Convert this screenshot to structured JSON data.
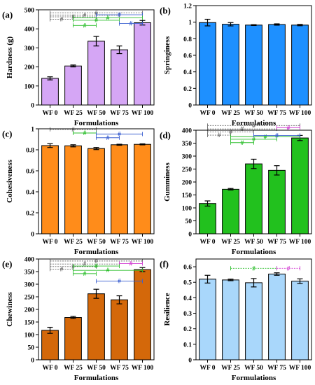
{
  "chart_data": [
    {
      "type": "bar",
      "panel": "(a)",
      "categories": [
        "WF 0",
        "WF 25",
        "WF 50",
        "WF 75",
        "WF 100"
      ],
      "values": [
        140,
        205,
        335,
        290,
        432
      ],
      "errors": [
        8,
        5,
        25,
        20,
        12
      ],
      "ylim": [
        0,
        500
      ],
      "yticks": [
        0,
        100,
        200,
        300,
        400,
        500
      ],
      "xlabel": "Formulations",
      "ylabel": "Hardness (g)",
      "color": "#d5a6f5",
      "sig_rows": [
        {
          "y": 484,
          "x1": 0,
          "x2": 4,
          "label": "#",
          "color": "#6a6a6a",
          "dashed": true
        },
        {
          "y": 472,
          "x1": 0,
          "x2": 3,
          "label": "#",
          "color": "#6a6a6a",
          "dashed": true
        },
        {
          "y": 463,
          "x1": 0,
          "x2": 2,
          "label": "#",
          "color": "#6a6a6a",
          "dashed": true
        },
        {
          "y": 450,
          "x1": 0,
          "x2": 1,
          "label": "#",
          "color": "#6a6a6a",
          "dashed": true
        },
        {
          "y": 474,
          "x1": 2,
          "x2": 4,
          "label": "#",
          "color": "#3a5fd0",
          "dashed": false
        },
        {
          "y": 458,
          "x1": 1,
          "x2": 4,
          "label": "#",
          "color": "#2fbf2f",
          "dashed": false
        },
        {
          "y": 445,
          "x1": 1,
          "x2": 3,
          "label": "#",
          "color": "#2fbf2f",
          "dashed": false
        },
        {
          "y": 418,
          "x1": 1,
          "x2": 2,
          "label": "#",
          "color": "#2fbf2f",
          "dashed": false
        },
        {
          "y": 428,
          "x1": 3,
          "x2": 4,
          "label": "#",
          "color": "#3a5fd0",
          "dashed": false
        }
      ]
    },
    {
      "type": "bar",
      "panel": "(b)",
      "categories": [
        "WF 0",
        "WF 25",
        "WF 50",
        "WF 75",
        "WF 100"
      ],
      "values": [
        0.995,
        0.975,
        0.965,
        0.972,
        0.965
      ],
      "errors": [
        0.04,
        0.02,
        0.005,
        0.008,
        0.008
      ],
      "ylim": [
        0,
        1.2
      ],
      "yticks": [
        0,
        0.2,
        0.4,
        0.6,
        0.8,
        1,
        1.2
      ],
      "xlabel": "Formulations",
      "ylabel": "Springiness",
      "color": "#1e90ff",
      "sig_rows": []
    },
    {
      "type": "bar",
      "panel": "(c)",
      "categories": [
        "WF 0",
        "WF 25",
        "WF 50",
        "WF 75",
        "WF 100"
      ],
      "values": [
        0.84,
        0.838,
        0.812,
        0.848,
        0.852
      ],
      "errors": [
        0.018,
        0.01,
        0.01,
        0.005,
        0.005
      ],
      "ylim": [
        0,
        1
      ],
      "yticks": [
        0,
        0.2,
        0.4,
        0.6,
        0.8,
        1
      ],
      "xlabel": "Formulations",
      "ylabel": "Cohesiveness",
      "color": "#ff8c1a",
      "sig_rows": [
        {
          "y": 0.995,
          "x1": 0,
          "x2": 2,
          "label": "#",
          "color": "#6a6a6a",
          "dashed": true
        },
        {
          "y": 0.96,
          "x1": 1,
          "x2": 2,
          "label": "#",
          "color": "#2fbf2f",
          "dashed": false
        },
        {
          "y": 0.95,
          "x1": 2,
          "x2": 4,
          "label": "#",
          "color": "#3a5fd0",
          "dashed": false
        },
        {
          "y": 0.915,
          "x1": 2,
          "x2": 3,
          "label": "#",
          "color": "#3a5fd0",
          "dashed": false
        }
      ]
    },
    {
      "type": "bar",
      "panel": "(d)",
      "categories": [
        "WF 0",
        "WF 25",
        "WF 50",
        "WF 75",
        "WF 100"
      ],
      "values": [
        117,
        172,
        270,
        245,
        370
      ],
      "errors": [
        10,
        3,
        18,
        18,
        10
      ],
      "ylim": [
        0,
        400
      ],
      "yticks": [
        0,
        50,
        100,
        150,
        200,
        250,
        300,
        350,
        400
      ],
      "xlabel": "Formulations",
      "ylabel": "Gumminess",
      "color": "#22c11e",
      "sig_rows": [
        {
          "y": 418,
          "x1": 0,
          "x2": 4,
          "label": "#",
          "color": "#6a6a6a",
          "dashed": true
        },
        {
          "y": 405,
          "x1": 0,
          "x2": 3,
          "label": "#",
          "color": "#6a6a6a",
          "dashed": true
        },
        {
          "y": 393,
          "x1": 0,
          "x2": 2,
          "label": "#",
          "color": "#6a6a6a",
          "dashed": true
        },
        {
          "y": 381,
          "x1": 0,
          "x2": 1,
          "label": "#",
          "color": "#6a6a6a",
          "dashed": true
        },
        {
          "y": 410,
          "x1": 3,
          "x2": 4,
          "label": "#",
          "color": "#d23fd2",
          "dashed": false
        },
        {
          "y": 375,
          "x1": 1,
          "x2": 4,
          "label": "#",
          "color": "#2fbf2f",
          "dashed": false
        },
        {
          "y": 365,
          "x1": 1,
          "x2": 3,
          "label": "#",
          "color": "#2fbf2f",
          "dashed": false
        },
        {
          "y": 352,
          "x1": 1,
          "x2": 2,
          "label": "#",
          "color": "#2fbf2f",
          "dashed": false
        },
        {
          "y": 380,
          "x1": 2,
          "x2": 4,
          "label": "#",
          "color": "#3a5fd0",
          "dashed": false
        }
      ]
    },
    {
      "type": "bar",
      "panel": "(e)",
      "categories": [
        "WF 0",
        "WF 25",
        "WF 50",
        "WF 75",
        "WF 100"
      ],
      "values": [
        117,
        168,
        262,
        238,
        358
      ],
      "errors": [
        12,
        4,
        18,
        16,
        8
      ],
      "ylim": [
        0,
        400
      ],
      "yticks": [
        0,
        50,
        100,
        150,
        200,
        250,
        300,
        350,
        400
      ],
      "xlabel": "Formulations",
      "ylabel": "Chewiness",
      "color": "#d4680a",
      "sig_rows": [
        {
          "y": 392,
          "x1": 0,
          "x2": 4,
          "label": "#",
          "color": "#6a6a6a",
          "dashed": true
        },
        {
          "y": 380,
          "x1": 0,
          "x2": 3,
          "label": "#",
          "color": "#6a6a6a",
          "dashed": true
        },
        {
          "y": 370,
          "x1": 0,
          "x2": 2,
          "label": "#",
          "color": "#6a6a6a",
          "dashed": true
        },
        {
          "y": 360,
          "x1": 0,
          "x2": 1,
          "label": "#",
          "color": "#6a6a6a",
          "dashed": true
        },
        {
          "y": 382,
          "x1": 3,
          "x2": 4,
          "label": "#",
          "color": "#d23fd2",
          "dashed": false
        },
        {
          "y": 372,
          "x1": 1,
          "x2": 3,
          "label": "#",
          "color": "#2fbf2f",
          "dashed": false
        },
        {
          "y": 355,
          "x1": 1,
          "x2": 4,
          "label": "#",
          "color": "#2fbf2f",
          "dashed": false
        },
        {
          "y": 342,
          "x1": 1,
          "x2": 2,
          "label": "#",
          "color": "#2fbf2f",
          "dashed": false
        },
        {
          "y": 312,
          "x1": 2,
          "x2": 4,
          "label": "#",
          "color": "#3a5fd0",
          "dashed": false
        }
      ]
    },
    {
      "type": "bar",
      "panel": "(f)",
      "categories": [
        "WF 0",
        "WF 25",
        "WF 50",
        "WF 75",
        "WF 100"
      ],
      "values": [
        0.52,
        0.515,
        0.497,
        0.553,
        0.507
      ],
      "errors": [
        0.025,
        0.005,
        0.027,
        0.008,
        0.015
      ],
      "ylim": [
        0,
        0.65
      ],
      "yticks": [
        0,
        0.1,
        0.2,
        0.3,
        0.4,
        0.5,
        0.6
      ],
      "xlabel": "Formulations",
      "ylabel": "Resilience",
      "color": "#a9d7fb",
      "sig_rows": [
        {
          "y": 0.59,
          "x1": 1,
          "x2": 3,
          "label": "#",
          "color": "#2fbf2f",
          "dashed": true
        },
        {
          "y": 0.59,
          "x1": 3,
          "x2": 4,
          "label": "#",
          "color": "#d23fd2",
          "dashed": true
        }
      ]
    }
  ]
}
